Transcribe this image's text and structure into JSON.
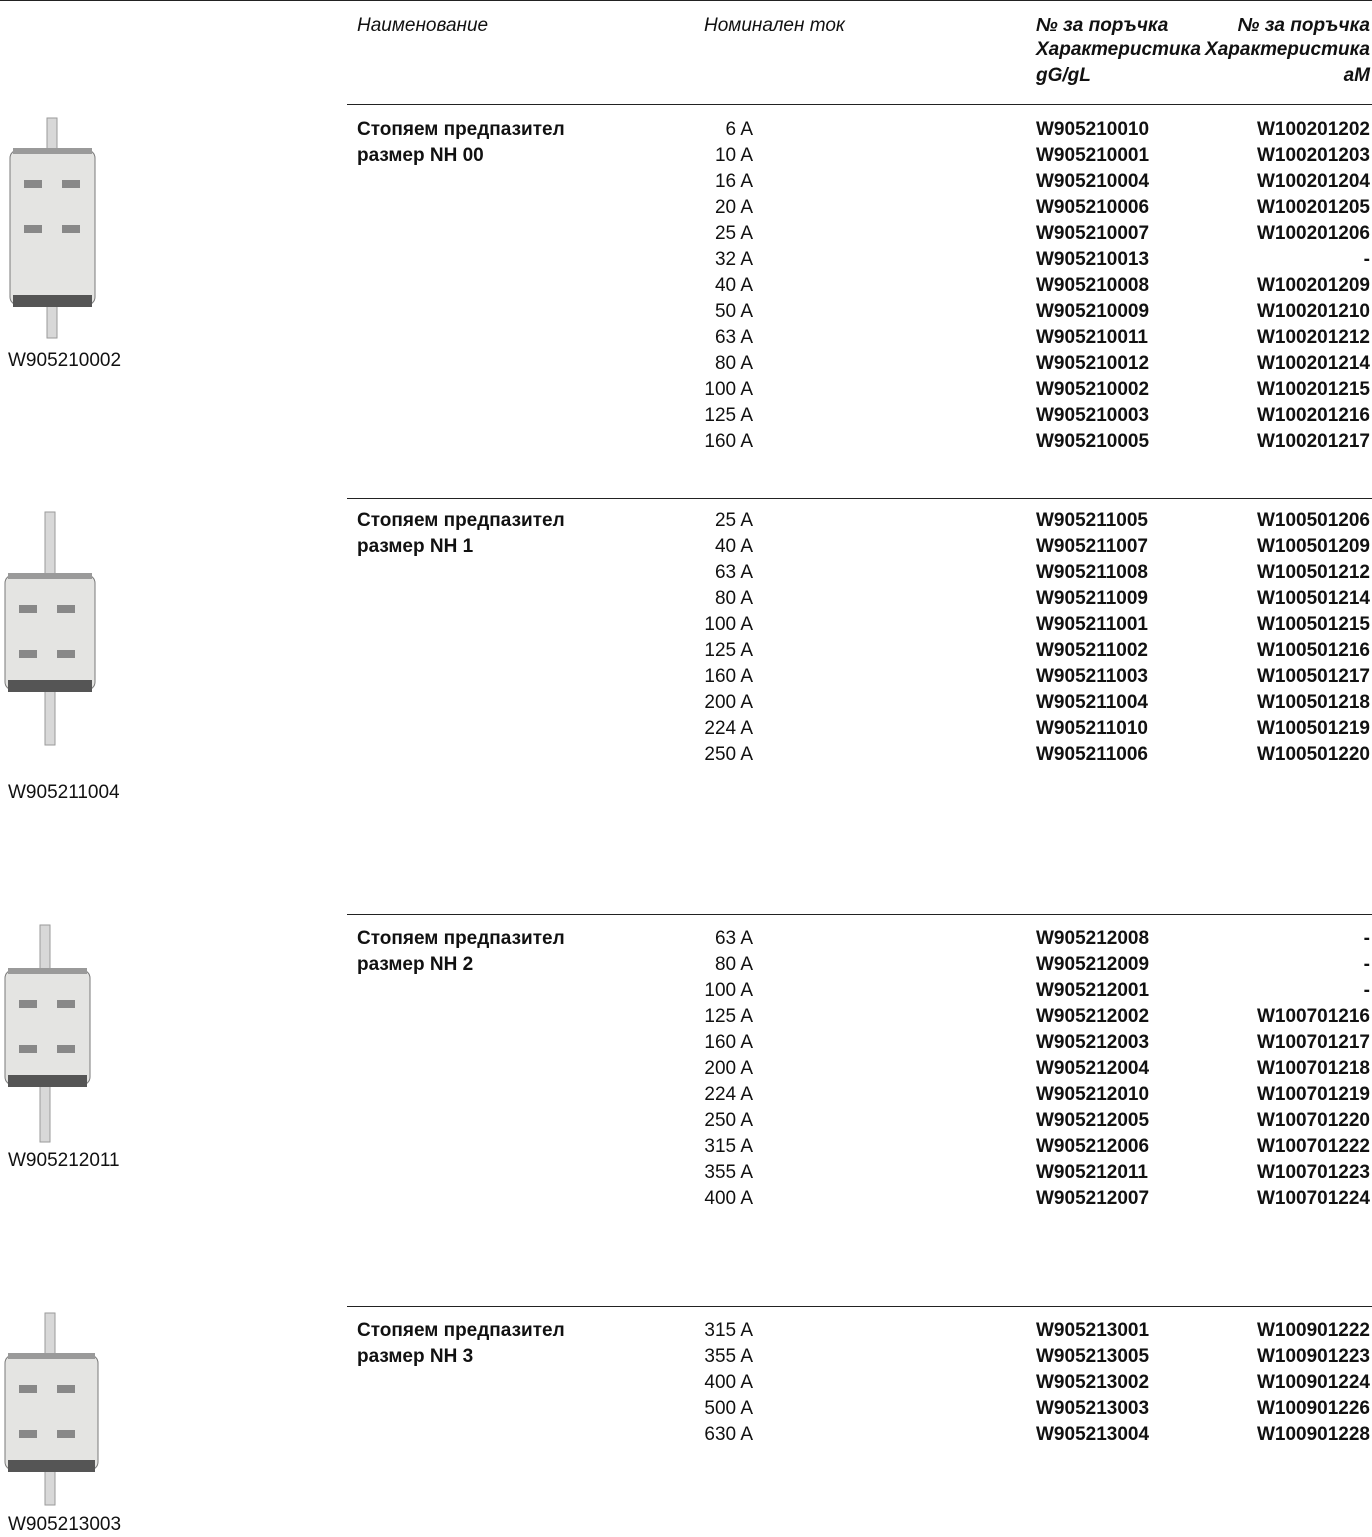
{
  "header": {
    "name": "Наименование",
    "current": "Номинален ток",
    "gg": [
      "№ за поръчка",
      "Характеристика",
      "gG/gL"
    ],
    "am": [
      "№ за поръчка",
      "Характеристика",
      "aM"
    ]
  },
  "sections": [
    {
      "image_caption": "W905210002",
      "name": [
        "Стопяем предпазител",
        "размер NH 00"
      ],
      "rows": [
        [
          "6 A",
          "W905210010",
          "W100201202"
        ],
        [
          "10 A",
          "W905210001",
          "W100201203"
        ],
        [
          "16 A",
          "W905210004",
          "W100201204"
        ],
        [
          "20 A",
          "W905210006",
          "W100201205"
        ],
        [
          "25 A",
          "W905210007",
          "W100201206"
        ],
        [
          "32 A",
          "W905210013",
          "-"
        ],
        [
          "40 A",
          "W905210008",
          "W100201209"
        ],
        [
          "50 A",
          "W905210009",
          "W100201210"
        ],
        [
          "63 A",
          "W905210011",
          "W100201212"
        ],
        [
          "80 A",
          "W905210012",
          "W100201214"
        ],
        [
          "100 A",
          "W905210002",
          "W100201215"
        ],
        [
          "125 A",
          "W905210003",
          "W100201216"
        ],
        [
          "160 A",
          "W905210005",
          "W100201217"
        ]
      ]
    },
    {
      "image_caption": "W905211004",
      "name": [
        "Стопяем предпазител",
        "размер NH 1"
      ],
      "rows": [
        [
          "25 A",
          "W905211005",
          "W100501206"
        ],
        [
          "40 A",
          "W905211007",
          "W100501209"
        ],
        [
          "63 A",
          "W905211008",
          "W100501212"
        ],
        [
          "80 A",
          "W905211009",
          "W100501214"
        ],
        [
          "100 A",
          "W905211001",
          "W100501215"
        ],
        [
          "125 A",
          "W905211002",
          "W100501216"
        ],
        [
          "160 A",
          "W905211003",
          "W100501217"
        ],
        [
          "200 A",
          "W905211004",
          "W100501218"
        ],
        [
          "224 A",
          "W905211010",
          "W100501219"
        ],
        [
          "250 A",
          "W905211006",
          "W100501220"
        ]
      ]
    },
    {
      "image_caption": "W905212011",
      "name": [
        "Стопяем предпазител",
        "размер NH 2"
      ],
      "rows": [
        [
          "63 A",
          "W905212008",
          "-"
        ],
        [
          "80 A",
          "W905212009",
          "-"
        ],
        [
          "100 A",
          "W905212001",
          "-"
        ],
        [
          "125 A",
          "W905212002",
          "W100701216"
        ],
        [
          "160 A",
          "W905212003",
          "W100701217"
        ],
        [
          "200 A",
          "W905212004",
          "W100701218"
        ],
        [
          "224 A",
          "W905212010",
          "W100701219"
        ],
        [
          "250 A",
          "W905212005",
          "W100701220"
        ],
        [
          "315 A",
          "W905212006",
          "W100701222"
        ],
        [
          "355 A",
          "W905212011",
          "W100701223"
        ],
        [
          "400 A",
          "W905212007",
          "W100701224"
        ]
      ]
    },
    {
      "image_caption": "W905213003",
      "name": [
        "Стопяем предпазител",
        "размер NH 3"
      ],
      "rows": [
        [
          "315 A",
          "W905213001",
          "W100901222"
        ],
        [
          "355 A",
          "W905213005",
          "W100901223"
        ],
        [
          "400 A",
          "W905213002",
          "W100901224"
        ],
        [
          "500 A",
          "W905213003",
          "W100901226"
        ],
        [
          "630 A",
          "W905213004",
          "W100901228"
        ]
      ]
    }
  ]
}
